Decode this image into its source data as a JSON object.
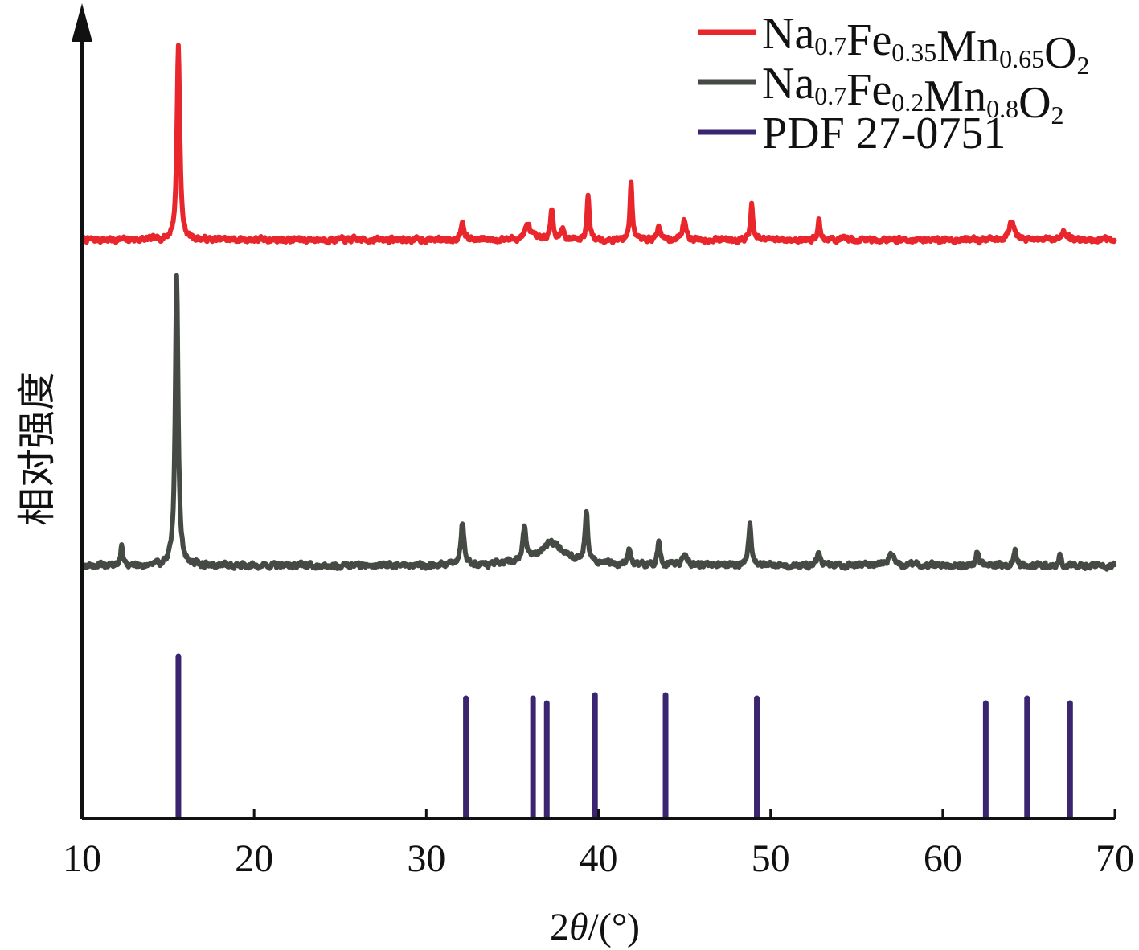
{
  "chart_data": {
    "type": "line",
    "xlabel": {
      "pre": "2",
      "italic": "θ",
      "post": "/(°)"
    },
    "ylabel": "相对强度",
    "xlim": [
      10,
      70
    ],
    "xticks": [
      "10",
      "20",
      "30",
      "40",
      "50",
      "60",
      "70"
    ],
    "grid": false,
    "legend_position": "top-right",
    "series": [
      {
        "color": "#e8262b",
        "legend": [
          {
            "t": "Na"
          },
          {
            "t": "0.7",
            "sub": true
          },
          {
            "t": "Fe"
          },
          {
            "t": "0.35",
            "sub": true
          },
          {
            "t": "Mn"
          },
          {
            "t": "0.65",
            "sub": true
          },
          {
            "t": "O"
          },
          {
            "t": "2",
            "sub": true
          }
        ],
        "baseline": 0.72,
        "noise": 0.022,
        "seed": 7,
        "peaks": [
          {
            "x": 15.6,
            "h": 0.94,
            "w": 0.1
          },
          {
            "x": 32.1,
            "h": 0.1,
            "w": 0.1
          },
          {
            "x": 35.9,
            "h": 0.07,
            "w": 0.2
          },
          {
            "x": 37.3,
            "h": 0.14,
            "w": 0.1
          },
          {
            "x": 37.9,
            "h": 0.06,
            "w": 0.1
          },
          {
            "x": 39.4,
            "h": 0.22,
            "w": 0.08
          },
          {
            "x": 41.9,
            "h": 0.28,
            "w": 0.08
          },
          {
            "x": 43.5,
            "h": 0.08,
            "w": 0.08
          },
          {
            "x": 45.0,
            "h": 0.1,
            "w": 0.12
          },
          {
            "x": 48.9,
            "h": 0.17,
            "w": 0.08
          },
          {
            "x": 52.8,
            "h": 0.1,
            "w": 0.08
          },
          {
            "x": 64.0,
            "h": 0.08,
            "w": 0.2
          },
          {
            "x": 67.0,
            "h": 0.04,
            "w": 0.2
          }
        ]
      },
      {
        "color": "#454a45",
        "legend": [
          {
            "t": "Na"
          },
          {
            "t": "0.7",
            "sub": true
          },
          {
            "t": "Fe"
          },
          {
            "t": "0.2",
            "sub": true
          },
          {
            "t": "Mn"
          },
          {
            "t": "0.8",
            "sub": true
          },
          {
            "t": "O"
          },
          {
            "t": "2",
            "sub": true
          }
        ],
        "baseline": 0.0,
        "noise": 0.022,
        "seed": 19,
        "peaks": [
          {
            "x": 12.3,
            "h": 0.08,
            "w": 0.08
          },
          {
            "x": 15.5,
            "h": 1.27,
            "w": 0.1
          },
          {
            "x": 32.1,
            "h": 0.18,
            "w": 0.12
          },
          {
            "x": 35.7,
            "h": 0.14,
            "w": 0.12
          },
          {
            "x": 37.3,
            "h": 0.1,
            "w": 0.9
          },
          {
            "x": 39.3,
            "h": 0.22,
            "w": 0.1
          },
          {
            "x": 41.8,
            "h": 0.07,
            "w": 0.1
          },
          {
            "x": 43.5,
            "h": 0.1,
            "w": 0.08
          },
          {
            "x": 45.0,
            "h": 0.04,
            "w": 0.15
          },
          {
            "x": 48.8,
            "h": 0.18,
            "w": 0.1
          },
          {
            "x": 52.8,
            "h": 0.05,
            "w": 0.1
          },
          {
            "x": 57.0,
            "h": 0.05,
            "w": 0.15
          },
          {
            "x": 62.0,
            "h": 0.06,
            "w": 0.1
          },
          {
            "x": 64.2,
            "h": 0.07,
            "w": 0.1
          },
          {
            "x": 66.8,
            "h": 0.04,
            "w": 0.1
          }
        ]
      },
      {
        "type": "stick",
        "color": "#3a2670",
        "legend": [
          {
            "t": "PDF 27-0751"
          }
        ],
        "sticks": [
          {
            "x": 15.6,
            "h": 1.0
          },
          {
            "x": 32.3,
            "h": 0.74
          },
          {
            "x": 36.2,
            "h": 0.74
          },
          {
            "x": 37.0,
            "h": 0.71
          },
          {
            "x": 39.8,
            "h": 0.76
          },
          {
            "x": 43.9,
            "h": 0.76
          },
          {
            "x": 49.2,
            "h": 0.74
          },
          {
            "x": 62.5,
            "h": 0.71
          },
          {
            "x": 64.9,
            "h": 0.74
          },
          {
            "x": 67.4,
            "h": 0.71
          }
        ]
      }
    ]
  }
}
